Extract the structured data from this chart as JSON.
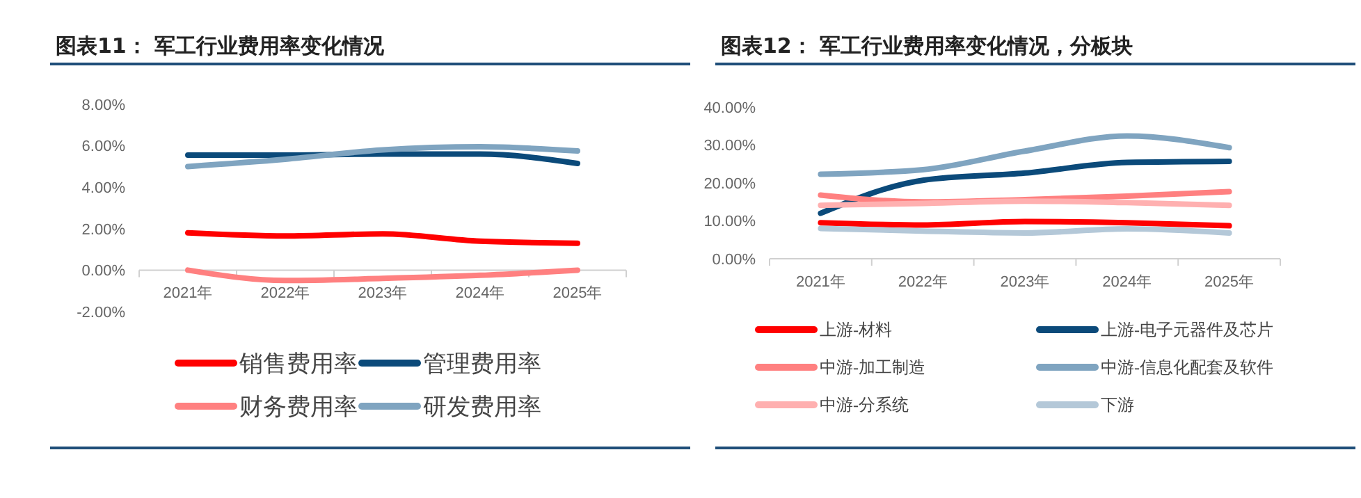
{
  "chart_data": [
    {
      "type": "line",
      "title": "图表11：  军工行业费用率变化情况",
      "categories": [
        "2021年",
        "2022年",
        "2023年",
        "2024年",
        "2025年"
      ],
      "ylim": [
        -2,
        8
      ],
      "yticks": [
        {
          "value": -2,
          "label": "-2.00%"
        },
        {
          "value": 0,
          "label": "0.00%"
        },
        {
          "value": 2,
          "label": "2.00%"
        },
        {
          "value": 4,
          "label": "4.00%"
        },
        {
          "value": 6,
          "label": "6.00%"
        },
        {
          "value": 8,
          "label": "8.00%"
        }
      ],
      "grid": false,
      "legend": "bottom",
      "series": [
        {
          "name": "销售费用率",
          "color": "#ff0000",
          "values": [
            1.8,
            1.65,
            1.75,
            1.4,
            1.3
          ]
        },
        {
          "name": "管理费用率",
          "color": "#0b4a7a",
          "values": [
            5.55,
            5.55,
            5.6,
            5.6,
            5.15
          ]
        },
        {
          "name": "财务费用率",
          "color": "#ff8080",
          "values": [
            0,
            -0.5,
            -0.4,
            -0.25,
            0
          ]
        },
        {
          "name": "研发费用率",
          "color": "#7fa4c0",
          "values": [
            5,
            5.35,
            5.8,
            5.95,
            5.75
          ]
        }
      ]
    },
    {
      "type": "line",
      "title": "图表12：  军工行业费用率变化情况，分板块",
      "categories": [
        "2021年",
        "2022年",
        "2023年",
        "2024年",
        "2025年"
      ],
      "ylim": [
        0,
        40
      ],
      "yticks": [
        {
          "value": 0,
          "label": "0.00%"
        },
        {
          "value": 10,
          "label": "10.00%"
        },
        {
          "value": 20,
          "label": "20.00%"
        },
        {
          "value": 30,
          "label": "30.00%"
        },
        {
          "value": 40,
          "label": "40.00%"
        }
      ],
      "grid": false,
      "legend": "bottom",
      "series": [
        {
          "name": "上游-材料",
          "color": "#ff0000",
          "values": [
            9.5,
            8.9,
            9.8,
            9.5,
            8.7
          ]
        },
        {
          "name": "上游-电子元器件及芯片",
          "color": "#0b4a7a",
          "values": [
            12,
            20.7,
            22.6,
            25.4,
            25.7
          ]
        },
        {
          "name": "中游-加工制造",
          "color": "#ff8080",
          "values": [
            16.8,
            15,
            15.6,
            16.5,
            17.7
          ]
        },
        {
          "name": "中游-信息化配套及软件",
          "color": "#7fa4c0",
          "values": [
            22.3,
            23.5,
            28.4,
            32.4,
            29.3
          ]
        },
        {
          "name": "中游-分系统",
          "color": "#ffb0b0",
          "values": [
            14.1,
            14.6,
            15.2,
            14.8,
            14.1
          ]
        },
        {
          "name": "下游",
          "color": "#b4c8d8",
          "values": [
            8,
            7.3,
            6.8,
            7.9,
            6.8
          ]
        }
      ]
    }
  ]
}
